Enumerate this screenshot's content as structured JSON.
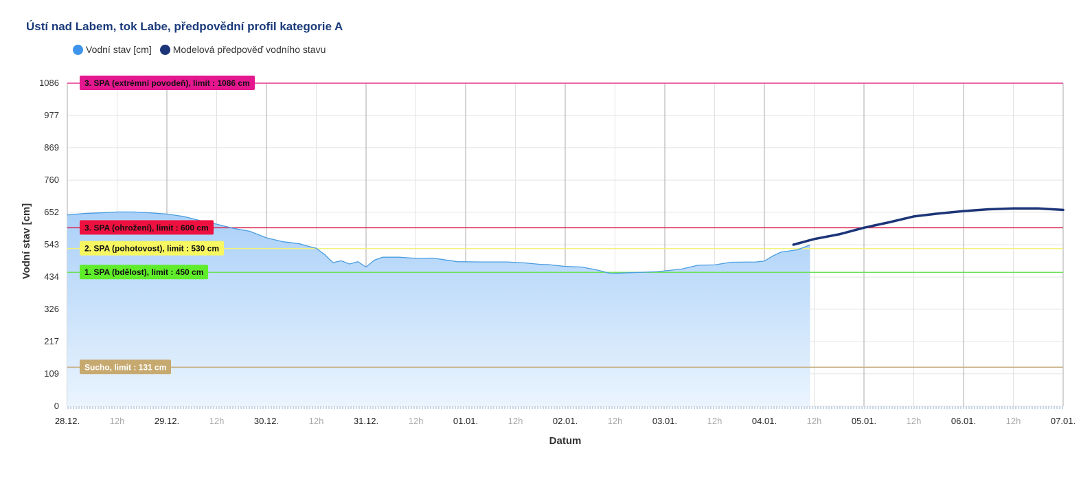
{
  "chart_data": {
    "type": "area",
    "title": "Ústí nad Labem, tok Labe, předpovědní profil kategorie A",
    "xlabel": "Datum",
    "ylabel": "Vodní stav [cm]",
    "ylim": [
      0,
      1086
    ],
    "yticks": [
      0,
      109,
      217,
      326,
      434,
      543,
      652,
      760,
      869,
      977,
      1086
    ],
    "x_hours_range": [
      0,
      240
    ],
    "xticks": [
      {
        "h": 0,
        "label": "28.12.",
        "major": true
      },
      {
        "h": 12,
        "label": "12h",
        "major": false
      },
      {
        "h": 24,
        "label": "29.12.",
        "major": true
      },
      {
        "h": 36,
        "label": "12h",
        "major": false
      },
      {
        "h": 48,
        "label": "30.12.",
        "major": true
      },
      {
        "h": 60,
        "label": "12h",
        "major": false
      },
      {
        "h": 72,
        "label": "31.12.",
        "major": true
      },
      {
        "h": 84,
        "label": "12h",
        "major": false
      },
      {
        "h": 96,
        "label": "01.01.",
        "major": true
      },
      {
        "h": 108,
        "label": "12h",
        "major": false
      },
      {
        "h": 120,
        "label": "02.01.",
        "major": true
      },
      {
        "h": 132,
        "label": "12h",
        "major": false
      },
      {
        "h": 144,
        "label": "03.01.",
        "major": true
      },
      {
        "h": 156,
        "label": "12h",
        "major": false
      },
      {
        "h": 168,
        "label": "04.01.",
        "major": true
      },
      {
        "h": 180,
        "label": "12h",
        "major": false
      },
      {
        "h": 192,
        "label": "05.01.",
        "major": true
      },
      {
        "h": 204,
        "label": "12h",
        "major": false
      },
      {
        "h": 216,
        "label": "06.01.",
        "major": true
      },
      {
        "h": 228,
        "label": "12h",
        "major": false
      },
      {
        "h": 240,
        "label": "07.01.",
        "major": true
      }
    ],
    "legend_position": "top-left",
    "grid": true,
    "series": [
      {
        "name": "Vodní stav [cm]",
        "color": "#4a9de0",
        "type": "area",
        "x": [
          0,
          4,
          8,
          12,
          16,
          20,
          24,
          28,
          32,
          36,
          40,
          44,
          48,
          52,
          56,
          58,
          60,
          62,
          64,
          66,
          68,
          70,
          72,
          74,
          76,
          80,
          84,
          88,
          90,
          94,
          100,
          106,
          110,
          114,
          116,
          120,
          124,
          128,
          131,
          136,
          142,
          148,
          152,
          156,
          160,
          166,
          168,
          170,
          172,
          176,
          179
        ],
        "y": [
          643,
          648,
          650,
          653,
          653,
          650,
          646,
          638,
          624,
          612,
          598,
          588,
          566,
          553,
          546,
          538,
          531,
          510,
          483,
          489,
          478,
          486,
          468,
          491,
          501,
          501,
          497,
          498,
          494,
          486,
          485,
          485,
          482,
          477,
          476,
          470,
          468,
          457,
          446,
          449,
          452,
          461,
          474,
          475,
          484,
          485,
          488,
          505,
          518,
          526,
          542
        ]
      },
      {
        "name": "Modelová předpověď vodního stavu",
        "color": "#1c3578",
        "type": "line",
        "x": [
          175,
          180,
          186,
          192,
          198,
          204,
          210,
          216,
          222,
          228,
          234,
          240
        ],
        "y": [
          543,
          562,
          578,
          600,
          618,
          638,
          648,
          656,
          662,
          665,
          665,
          660
        ]
      }
    ],
    "limits": [
      {
        "label": "3. SPA (extrémní povodeň), limit : 1086 cm",
        "value": 1086,
        "line_color": "#e4378f",
        "bg": "#e4178f",
        "fg": "#111111"
      },
      {
        "label": "3. SPA (ohrožení), limit : 600 cm",
        "value": 600,
        "line_color": "#d8315a",
        "bg": "#ee1140",
        "fg": "#111111"
      },
      {
        "label": "2. SPA (pohotovost), limit : 530 cm",
        "value": 530,
        "line_color": "#f2f27a",
        "bg": "#f7f761",
        "fg": "#111111"
      },
      {
        "label": "1. SPA (bdělost), limit : 450 cm",
        "value": 450,
        "line_color": "#6ee05a",
        "bg": "#5fec2a",
        "fg": "#111111"
      },
      {
        "label": "Sucho, limit : 131 cm",
        "value": 131,
        "line_color": "#c8b083",
        "bg": "#c6a96f",
        "fg": "#ffffff"
      }
    ]
  }
}
